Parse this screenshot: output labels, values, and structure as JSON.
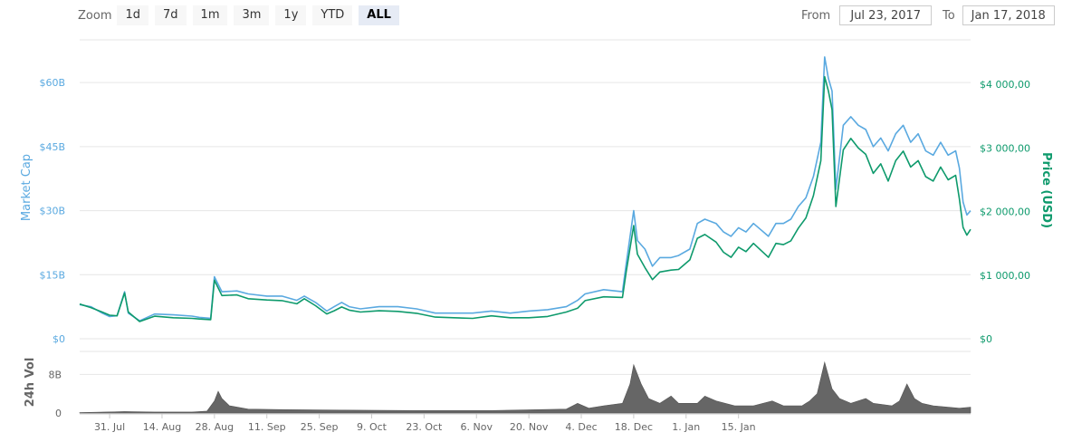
{
  "toolbar": {
    "zoom_label": "Zoom",
    "buttons": [
      "1d",
      "7d",
      "1m",
      "3m",
      "1y",
      "YTD",
      "ALL"
    ],
    "active": "ALL",
    "from_label": "From",
    "from_value": "Jul 23, 2017",
    "to_label": "To",
    "to_value": "Jan 17, 2018"
  },
  "colors": {
    "market_cap": "#5aa9e0",
    "price": "#0e9a6c",
    "volume": "#666666",
    "grid": "#e6e6e6"
  },
  "chart_data": {
    "type": "line",
    "x_ticks": [
      "31. Jul",
      "14. Aug",
      "28. Aug",
      "11. Sep",
      "25. Sep",
      "9. Oct",
      "23. Oct",
      "6. Nov",
      "20. Nov",
      "4. Dec",
      "18. Dec",
      "1. Jan",
      "15. Jan"
    ],
    "y_left": {
      "label": "Market Cap",
      "ticks": [
        "$0",
        "$15B",
        "$30B",
        "$45B",
        "$60B"
      ],
      "range": [
        0,
        70
      ]
    },
    "y_right": {
      "label": "Price (USD)",
      "ticks": [
        "$0",
        "$1 000,00",
        "$2 000,00",
        "$3 000,00",
        "$4 000,00"
      ],
      "range": [
        0,
        4700
      ]
    },
    "volume_axis": {
      "label": "24h Vol",
      "ticks": [
        "0",
        "8B"
      ]
    },
    "series": [
      {
        "name": "Market Cap",
        "axis": "left",
        "points": [
          [
            0,
            8
          ],
          [
            3,
            7.5
          ],
          [
            6,
            6
          ],
          [
            8,
            5.2
          ],
          [
            10,
            5.4
          ],
          [
            12,
            11
          ],
          [
            13,
            6
          ],
          [
            16,
            4.2
          ],
          [
            20,
            5.8
          ],
          [
            25,
            5.6
          ],
          [
            30,
            5.3
          ],
          [
            32,
            5.0
          ],
          [
            35,
            4.8
          ],
          [
            36,
            14.5
          ],
          [
            38,
            11
          ],
          [
            42,
            11.2
          ],
          [
            45,
            10.5
          ],
          [
            50,
            10
          ],
          [
            54,
            10
          ],
          [
            58,
            9
          ],
          [
            60,
            10
          ],
          [
            63,
            8.5
          ],
          [
            66,
            6.5
          ],
          [
            68,
            7.5
          ],
          [
            70,
            8.5
          ],
          [
            72,
            7.5
          ],
          [
            75,
            7
          ],
          [
            80,
            7.5
          ],
          [
            85,
            7.5
          ],
          [
            90,
            7
          ],
          [
            95,
            6
          ],
          [
            100,
            6
          ],
          [
            105,
            6
          ],
          [
            110,
            6.5
          ],
          [
            115,
            6
          ],
          [
            120,
            6.5
          ],
          [
            125,
            6.8
          ],
          [
            130,
            7.5
          ],
          [
            133,
            9
          ],
          [
            135,
            10.5
          ],
          [
            140,
            11.5
          ],
          [
            145,
            11
          ],
          [
            146,
            17.5
          ],
          [
            148,
            30
          ],
          [
            149,
            23
          ],
          [
            151,
            21
          ],
          [
            153,
            17
          ],
          [
            155,
            19
          ],
          [
            158,
            19
          ],
          [
            160,
            19.5
          ],
          [
            163,
            21
          ],
          [
            165,
            27
          ],
          [
            167,
            28
          ],
          [
            170,
            27
          ],
          [
            172,
            25
          ],
          [
            174,
            24
          ],
          [
            176,
            26
          ],
          [
            178,
            25
          ],
          [
            180,
            27
          ],
          [
            182,
            25.5
          ],
          [
            184,
            24
          ],
          [
            186,
            27
          ],
          [
            188,
            27
          ],
          [
            190,
            28
          ],
          [
            192,
            31
          ],
          [
            194,
            33
          ],
          [
            196,
            38
          ],
          [
            198,
            46
          ],
          [
            199,
            66
          ],
          [
            200,
            61
          ],
          [
            201,
            58
          ],
          [
            202,
            35
          ],
          [
            204,
            50
          ],
          [
            206,
            52
          ],
          [
            208,
            50
          ],
          [
            210,
            49
          ],
          [
            212,
            45
          ],
          [
            214,
            47
          ],
          [
            216,
            44
          ],
          [
            218,
            48
          ],
          [
            220,
            50
          ],
          [
            222,
            46
          ],
          [
            224,
            48
          ],
          [
            226,
            44
          ],
          [
            228,
            43
          ],
          [
            230,
            46
          ],
          [
            232,
            43
          ],
          [
            234,
            44
          ],
          [
            235,
            40
          ],
          [
            236,
            32
          ],
          [
            237,
            29
          ],
          [
            238,
            30
          ]
        ]
      },
      {
        "name": "Price (USD)",
        "axis": "right",
        "points": [
          [
            0,
            545
          ],
          [
            3,
            490
          ],
          [
            6,
            420
          ],
          [
            8,
            370
          ],
          [
            10,
            360
          ],
          [
            12,
            720
          ],
          [
            13,
            420
          ],
          [
            16,
            270
          ],
          [
            20,
            355
          ],
          [
            25,
            330
          ],
          [
            30,
            320
          ],
          [
            32,
            310
          ],
          [
            35,
            300
          ],
          [
            36,
            920
          ],
          [
            38,
            680
          ],
          [
            42,
            690
          ],
          [
            45,
            630
          ],
          [
            50,
            610
          ],
          [
            54,
            600
          ],
          [
            58,
            550
          ],
          [
            60,
            630
          ],
          [
            63,
            520
          ],
          [
            66,
            390
          ],
          [
            68,
            440
          ],
          [
            70,
            500
          ],
          [
            72,
            450
          ],
          [
            75,
            420
          ],
          [
            80,
            440
          ],
          [
            85,
            430
          ],
          [
            90,
            400
          ],
          [
            95,
            340
          ],
          [
            100,
            330
          ],
          [
            105,
            320
          ],
          [
            110,
            360
          ],
          [
            115,
            330
          ],
          [
            120,
            330
          ],
          [
            125,
            350
          ],
          [
            130,
            420
          ],
          [
            133,
            480
          ],
          [
            135,
            600
          ],
          [
            140,
            660
          ],
          [
            145,
            650
          ],
          [
            146,
            1050
          ],
          [
            148,
            1780
          ],
          [
            149,
            1330
          ],
          [
            151,
            1120
          ],
          [
            153,
            930
          ],
          [
            155,
            1050
          ],
          [
            158,
            1080
          ],
          [
            160,
            1090
          ],
          [
            163,
            1240
          ],
          [
            165,
            1580
          ],
          [
            167,
            1640
          ],
          [
            170,
            1520
          ],
          [
            172,
            1360
          ],
          [
            174,
            1280
          ],
          [
            176,
            1440
          ],
          [
            178,
            1370
          ],
          [
            180,
            1500
          ],
          [
            182,
            1390
          ],
          [
            184,
            1280
          ],
          [
            186,
            1500
          ],
          [
            188,
            1480
          ],
          [
            190,
            1540
          ],
          [
            192,
            1740
          ],
          [
            194,
            1900
          ],
          [
            196,
            2250
          ],
          [
            198,
            2800
          ],
          [
            199,
            4120
          ],
          [
            200,
            3900
          ],
          [
            201,
            3600
          ],
          [
            202,
            2080
          ],
          [
            204,
            2970
          ],
          [
            206,
            3150
          ],
          [
            208,
            3000
          ],
          [
            210,
            2900
          ],
          [
            212,
            2600
          ],
          [
            214,
            2750
          ],
          [
            216,
            2480
          ],
          [
            218,
            2800
          ],
          [
            220,
            2950
          ],
          [
            222,
            2700
          ],
          [
            224,
            2800
          ],
          [
            226,
            2550
          ],
          [
            228,
            2480
          ],
          [
            230,
            2700
          ],
          [
            232,
            2500
          ],
          [
            234,
            2570
          ],
          [
            235,
            2200
          ],
          [
            236,
            1750
          ],
          [
            237,
            1630
          ],
          [
            238,
            1720
          ]
        ]
      },
      {
        "name": "24h Vol",
        "axis": "volume",
        "points": [
          [
            0,
            0.1
          ],
          [
            12,
            0.3
          ],
          [
            20,
            0.2
          ],
          [
            30,
            0.2
          ],
          [
            34,
            0.4
          ],
          [
            36,
            2.5
          ],
          [
            37,
            4.5
          ],
          [
            38,
            3
          ],
          [
            40,
            1.5
          ],
          [
            45,
            0.8
          ],
          [
            55,
            0.7
          ],
          [
            70,
            0.6
          ],
          [
            90,
            0.5
          ],
          [
            110,
            0.5
          ],
          [
            130,
            0.8
          ],
          [
            133,
            2
          ],
          [
            136,
            1
          ],
          [
            140,
            1.5
          ],
          [
            145,
            2
          ],
          [
            147,
            6
          ],
          [
            148,
            10
          ],
          [
            150,
            6
          ],
          [
            152,
            3
          ],
          [
            155,
            2
          ],
          [
            158,
            3.5
          ],
          [
            160,
            2
          ],
          [
            165,
            2
          ],
          [
            167,
            3.5
          ],
          [
            170,
            2.5
          ],
          [
            175,
            1.5
          ],
          [
            180,
            1.5
          ],
          [
            185,
            2.5
          ],
          [
            188,
            1.5
          ],
          [
            193,
            1.5
          ],
          [
            195,
            2.5
          ],
          [
            197,
            4
          ],
          [
            199,
            10.5
          ],
          [
            201,
            5
          ],
          [
            203,
            3
          ],
          [
            206,
            2
          ],
          [
            210,
            3
          ],
          [
            212,
            2
          ],
          [
            217,
            1.5
          ],
          [
            219,
            2.5
          ],
          [
            221,
            6
          ],
          [
            223,
            3
          ],
          [
            225,
            2
          ],
          [
            228,
            1.5
          ],
          [
            232,
            1.2
          ],
          [
            235,
            1
          ],
          [
            238,
            1.2
          ]
        ]
      }
    ],
    "grid": true,
    "legend": "none"
  }
}
